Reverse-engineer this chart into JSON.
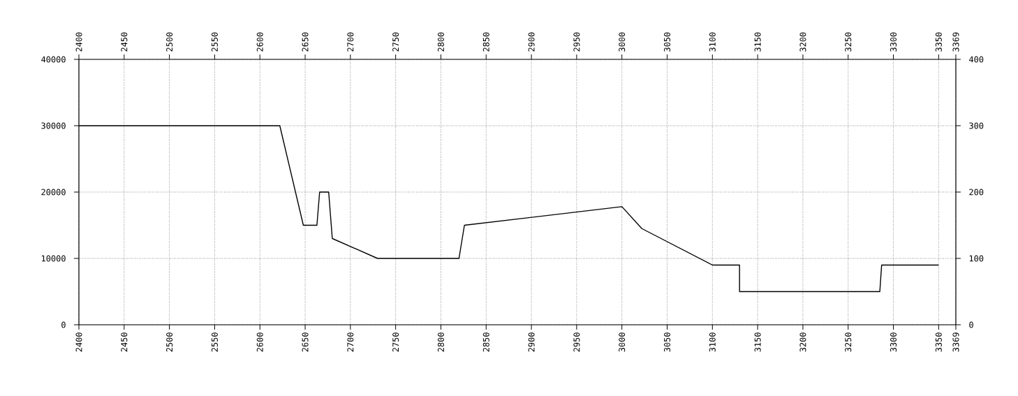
{
  "chart_data": {
    "type": "line",
    "x": [
      2400,
      2622,
      2648,
      2663,
      2666,
      2676,
      2680,
      2730,
      2820,
      2826,
      3000,
      3022,
      3100,
      3130,
      3130,
      3285,
      3287,
      3350
    ],
    "series": [
      {
        "color": "#000000",
        "axis": "y",
        "values": [
          30000,
          30000,
          15000,
          15000,
          20000,
          20000,
          13000,
          10000,
          10000,
          15000,
          17800,
          14500,
          9000,
          9000,
          5000,
          5000,
          9000,
          9000
        ]
      }
    ],
    "xlim": [
      2400,
      3369
    ],
    "xticks": [
      2400,
      2450,
      2500,
      2550,
      2600,
      2650,
      2700,
      2750,
      2800,
      2850,
      2900,
      2950,
      3000,
      3050,
      3100,
      3150,
      3200,
      3250,
      3300,
      3350,
      3369
    ],
    "x2lim": [
      2400,
      3369
    ],
    "x2ticks": [
      2400,
      2450,
      2500,
      2550,
      2600,
      2650,
      2700,
      2750,
      2800,
      2850,
      2900,
      2950,
      3000,
      3050,
      3100,
      3150,
      3200,
      3250,
      3300,
      3350,
      3369
    ],
    "ylim": [
      0,
      40000
    ],
    "yticks": [
      0,
      10000,
      20000,
      30000,
      40000
    ],
    "y2lim": [
      0,
      400
    ],
    "y2ticks": [
      0,
      100,
      200,
      300,
      400
    ],
    "grid": true,
    "line_style": "solid"
  }
}
